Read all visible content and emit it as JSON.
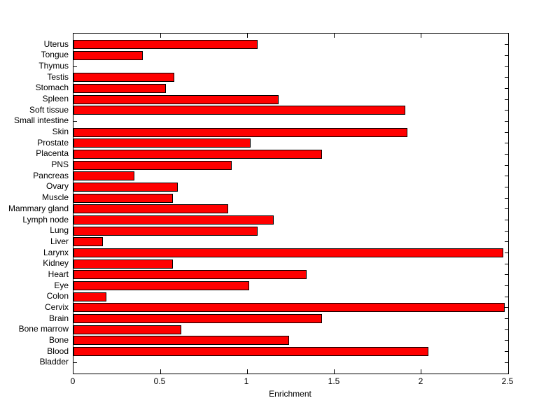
{
  "chart_data": {
    "type": "bar",
    "orientation": "horizontal",
    "title": "",
    "xlabel": "Enrichment",
    "ylabel": "",
    "xlim": [
      0,
      2.5
    ],
    "xtick_values": [
      0,
      0.5,
      1,
      1.5,
      2,
      2.5
    ],
    "xtick_labels": [
      "0",
      "0.5",
      "1",
      "1.5",
      "2",
      "2.5"
    ],
    "grid": false,
    "legend": null,
    "bar_color": "#ff0000",
    "bar_edge_color": "#000000",
    "axis_color": "#000000",
    "background_color": "#ffffff",
    "categories": [
      "Uterus",
      "Tongue",
      "Thymus",
      "Testis",
      "Stomach",
      "Spleen",
      "Soft tissue",
      "Small intestine",
      "Skin",
      "Prostate",
      "Placenta",
      "PNS",
      "Pancreas",
      "Ovary",
      "Muscle",
      "Mammary gland",
      "Lymph node",
      "Lung",
      "Liver",
      "Larynx",
      "Kidney",
      "Heart",
      "Eye",
      "Colon",
      "Cervix",
      "Brain",
      "Bone marrow",
      "Bone",
      "Blood",
      "Bladder"
    ],
    "values": [
      1.06,
      0.4,
      0,
      0.58,
      0.53,
      1.18,
      1.91,
      0,
      1.92,
      1.02,
      1.43,
      0.91,
      0.35,
      0.6,
      0.57,
      0.89,
      1.15,
      1.06,
      0.17,
      2.47,
      0.57,
      1.34,
      1.01,
      0.19,
      2.48,
      1.43,
      0.62,
      1.24,
      2.04,
      0
    ]
  }
}
